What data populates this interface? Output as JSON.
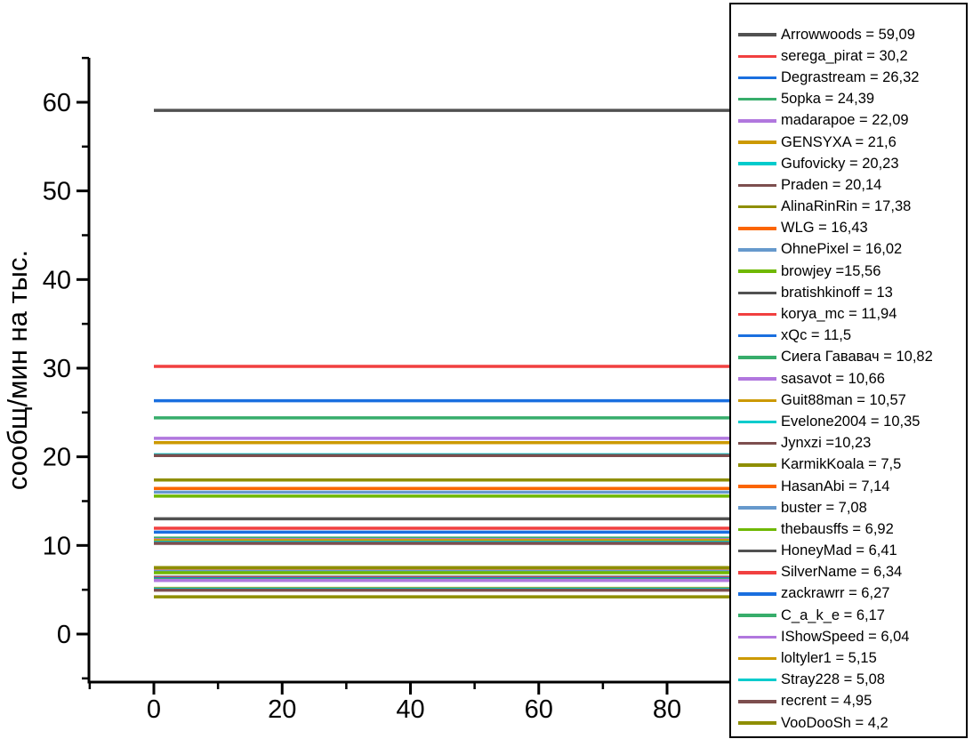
{
  "chart_data": {
    "type": "line",
    "variant": "horizontal-constant-lines",
    "title": "",
    "xlabel": "",
    "ylabel": "сообщ/мин на тыс.",
    "x_range": [
      -10,
      90
    ],
    "y_range": [
      -5.5,
      65
    ],
    "line_span_x": [
      0,
      90
    ],
    "x_ticks": [
      0,
      20,
      40,
      60,
      80
    ],
    "x_minor_ticks": [
      -10,
      10,
      30,
      50,
      70,
      90
    ],
    "y_ticks": [
      0,
      10,
      20,
      30,
      40,
      50,
      60
    ],
    "y_minor_ticks": [
      -5,
      5,
      15,
      25,
      35,
      45,
      55,
      65
    ],
    "grid": false,
    "legend_position": "right",
    "axis_color": "#000000",
    "text_color": "#000000",
    "background_color": "#ffffff",
    "series": [
      {
        "name": "Arrowwoods",
        "value": 59.09,
        "label": "Arrowwoods = 59,09",
        "color": "#515151"
      },
      {
        "name": "serega_pirat",
        "value": 30.2,
        "label": "serega_pirat = 30,2",
        "color": "#F14040"
      },
      {
        "name": "Degrastream",
        "value": 26.32,
        "label": "Degrastream = 26,32",
        "color": "#1A6FDF"
      },
      {
        "name": "5opka",
        "value": 24.39,
        "label": "5opka = 24,39",
        "color": "#37AD6B"
      },
      {
        "name": "madarapoe",
        "value": 22.09,
        "label": "madarapoe = 22,09",
        "color": "#B177DE"
      },
      {
        "name": "GENSYXA",
        "value": 21.6,
        "label": "GENSYXA = 21,6",
        "color": "#CC9900"
      },
      {
        "name": "Gufovicky",
        "value": 20.23,
        "label": "Gufovicky = 20,23",
        "color": "#00CBCC"
      },
      {
        "name": "Praden",
        "value": 20.14,
        "label": "Praden = 20,14",
        "color": "#7D4E4E"
      },
      {
        "name": "AlinaRinRin",
        "value": 17.38,
        "label": "AlinaRinRin = 17,38",
        "color": "#8E8E00"
      },
      {
        "name": "WLG",
        "value": 16.43,
        "label": "WLG = 16,43",
        "color": "#FB6501"
      },
      {
        "name": "OhnePixel",
        "value": 16.02,
        "label": "OhnePixel = 16,02",
        "color": "#6699CC"
      },
      {
        "name": "browjey",
        "value": 15.56,
        "label": "browjey =15,56",
        "color": "#6FB802"
      },
      {
        "name": "bratishkinoff",
        "value": 13,
        "label": "bratishkinoff = 13",
        "color": "#515151"
      },
      {
        "name": "korya_mc",
        "value": 11.94,
        "label": "korya_mc = 11,94",
        "color": "#F14040"
      },
      {
        "name": "xQc",
        "value": 11.5,
        "label": "xQc = 11,5",
        "color": "#1A6FDF"
      },
      {
        "name": "Сиега Гававач",
        "value": 10.82,
        "label": "Сиега Гававач = 10,82",
        "color": "#37AD6B"
      },
      {
        "name": "sasavot",
        "value": 10.66,
        "label": "sasavot = 10,66",
        "color": "#B177DE"
      },
      {
        "name": "Guit88man",
        "value": 10.57,
        "label": "Guit88man = 10,57",
        "color": "#CC9900"
      },
      {
        "name": "Evelone2004",
        "value": 10.35,
        "label": "Evelone2004 = 10,35",
        "color": "#00CBCC"
      },
      {
        "name": "Jynxzi",
        "value": 10.23,
        "label": "Jynxzi =10,23",
        "color": "#7D4E4E"
      },
      {
        "name": "KarmikKoala",
        "value": 7.5,
        "label": "KarmikKoala = 7,5",
        "color": "#8E8E00"
      },
      {
        "name": "HasanAbi",
        "value": 7.14,
        "label": "HasanAbi = 7,14",
        "color": "#FB6501"
      },
      {
        "name": "buster",
        "value": 7.08,
        "label": "buster = 7,08",
        "color": "#6699CC"
      },
      {
        "name": "thebausffs",
        "value": 6.92,
        "label": "thebausffs = 6,92",
        "color": "#6FB802"
      },
      {
        "name": "HoneyMad",
        "value": 6.41,
        "label": "HoneyMad = 6,41",
        "color": "#515151"
      },
      {
        "name": "SilverName",
        "value": 6.34,
        "label": "SilverName = 6,34",
        "color": "#F14040"
      },
      {
        "name": "zackrawrr",
        "value": 6.27,
        "label": "zackrawrr = 6,27",
        "color": "#1A6FDF"
      },
      {
        "name": "C_a_k_e",
        "value": 6.17,
        "label": "C_a_k_e = 6,17",
        "color": "#37AD6B"
      },
      {
        "name": "IShowSpeed",
        "value": 6.04,
        "label": "IShowSpeed = 6,04",
        "color": "#B177DE"
      },
      {
        "name": "loltyler1",
        "value": 5.15,
        "label": "loltyler1 = 5,15",
        "color": "#CC9900"
      },
      {
        "name": "Stray228",
        "value": 5.08,
        "label": "Stray228 = 5,08",
        "color": "#00CBCC"
      },
      {
        "name": "recrent",
        "value": 4.95,
        "label": "recrent = 4,95",
        "color": "#7D4E4E"
      },
      {
        "name": "VooDooSh",
        "value": 4.2,
        "label": "VooDooSh = 4,2",
        "color": "#8E8E00"
      }
    ]
  }
}
